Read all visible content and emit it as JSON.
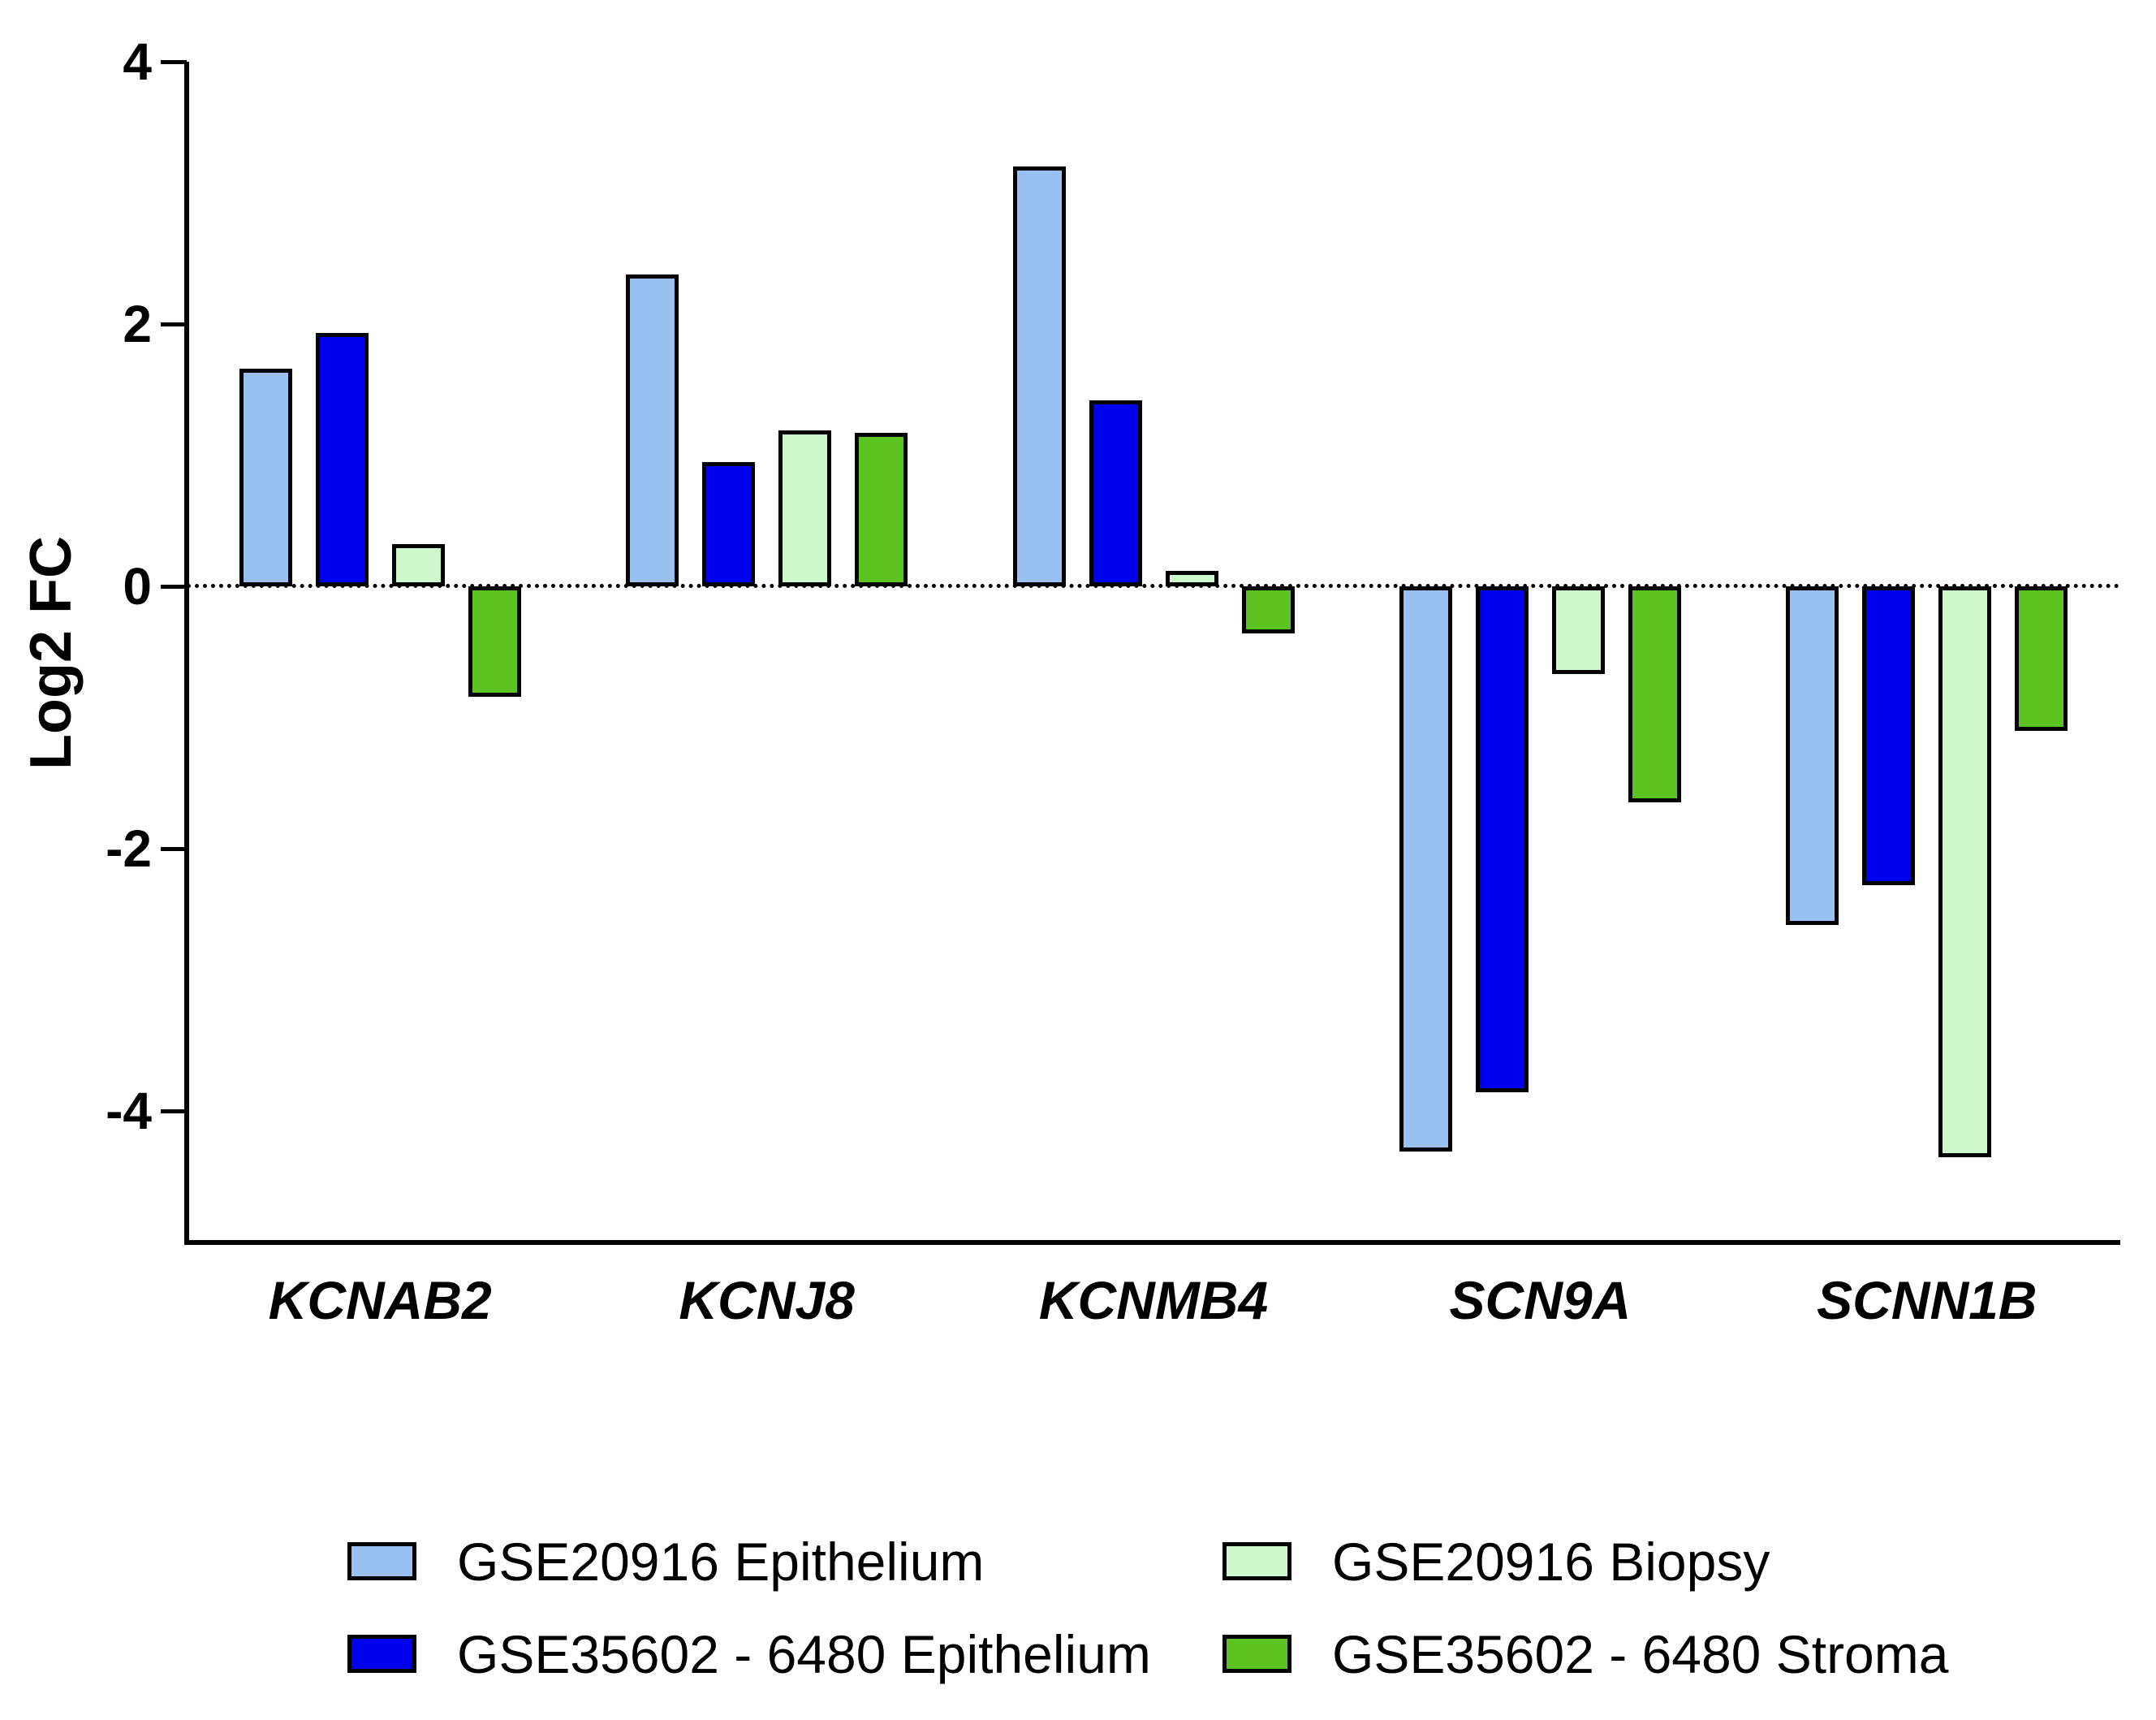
{
  "figure": {
    "background_color": "#FFFFFF",
    "text_color": "#000000"
  },
  "chart_data": {
    "type": "bar",
    "title": "",
    "xlabel": "",
    "ylabel": "Log2 FC",
    "ylim": [
      -5,
      4
    ],
    "yticks": [
      4,
      2,
      0,
      -2,
      -4
    ],
    "ytick_labels": [
      "4",
      "2",
      "0",
      "-2",
      "-4"
    ],
    "grid": "off",
    "zero_line_style": "dotted",
    "bar_outline_color": "#000000",
    "legend_position": "bottom",
    "categories": [
      "KCNAB2",
      "KCNJ8",
      "KCNMB4",
      "SCN9A",
      "SCNN1B"
    ],
    "series": [
      {
        "name": "GSE20916 Epithelium",
        "color": "#98C1F2",
        "values": [
          1.66,
          2.38,
          3.2,
          -4.31,
          -2.58
        ]
      },
      {
        "name": "GSE35602 - 6480 Epithelium",
        "color": "#0000F0",
        "values": [
          1.93,
          0.95,
          1.42,
          -3.86,
          -2.28
        ]
      },
      {
        "name": "GSE20916 Biopsy",
        "color": "#CCF8CC",
        "values": [
          0.32,
          1.19,
          0.12,
          -0.67,
          -4.35
        ]
      },
      {
        "name": "GSE35602 - 6480 Stroma",
        "color": "#5CC320",
        "values": [
          -0.84,
          1.17,
          -0.36,
          -1.65,
          -1.1
        ]
      }
    ],
    "legend_order": [
      0,
      2,
      1,
      3
    ]
  }
}
